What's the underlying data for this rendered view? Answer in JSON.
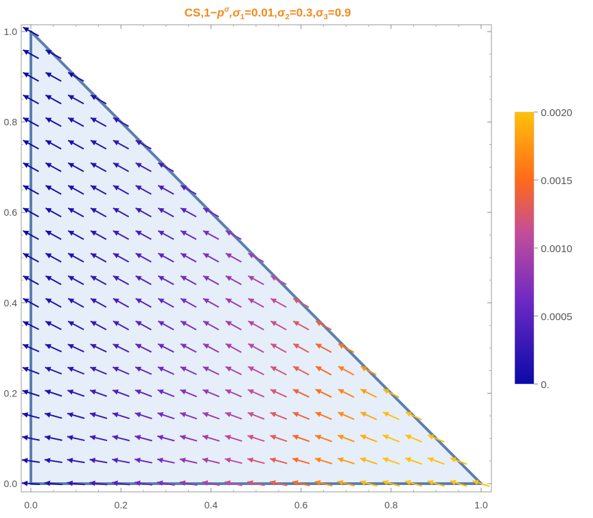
{
  "chart_data": {
    "type": "vector-field",
    "title_parts": {
      "prefix": "CS,1−",
      "p": "p",
      "sigma_sup": "σ",
      "s1": ",σ",
      "s1_sub": "1",
      "s1_val": "=0.01,σ",
      "s2_sub": "2",
      "s2_val": "=0.3,σ",
      "s3_sub": "3",
      "s3_val": "=0.9"
    },
    "xlim": [
      0,
      1
    ],
    "ylim": [
      0,
      1
    ],
    "x_ticks": [
      "0.0",
      "0.2",
      "0.4",
      "0.6",
      "0.8",
      "1.0"
    ],
    "y_ticks": [
      "0.0",
      "0.2",
      "0.4",
      "0.6",
      "0.8",
      "1.0"
    ],
    "region": {
      "vertices": [
        [
          0,
          0
        ],
        [
          1,
          0
        ],
        [
          0,
          1
        ]
      ],
      "fill": "#e6eef9",
      "edge": "#5b7fb0"
    },
    "grid_step": 0.05,
    "vector_direction": "up-left, magnitude grows toward lower right corner",
    "colorbar": {
      "range": [
        0,
        0.002
      ],
      "labels": [
        "0.0020",
        "0.0015",
        "0.0010",
        "0.0005",
        "0."
      ],
      "stops": [
        "#0a0aa8",
        "#6c28c4",
        "#c24c9c",
        "#ff6a1a",
        "#ffc10a"
      ]
    }
  }
}
